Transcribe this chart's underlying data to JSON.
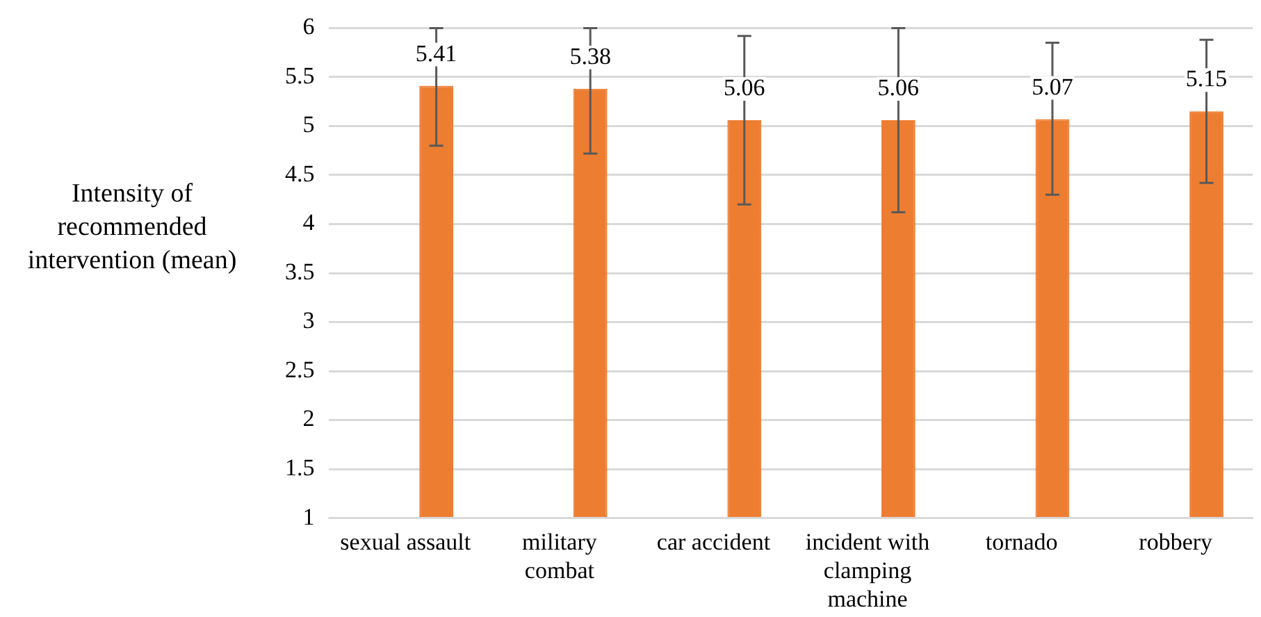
{
  "chart_data": {
    "type": "bar",
    "ylabel": "Intensity of recommended intervention (mean)",
    "categories": [
      "sexual assault",
      "military combat",
      "car accident",
      "incident with clamping machine",
      "tornado",
      "robbery"
    ],
    "series": [
      {
        "color": "#a5b8e0",
        "values": [
          1,
          1,
          1,
          1,
          1,
          1
        ]
      },
      {
        "color": "#ed7d31",
        "values": [
          5.41,
          5.38,
          5.06,
          5.06,
          5.07,
          5.15
        ],
        "value_labels": [
          "5.41",
          "5.38",
          "5.06",
          "5.06",
          "5.07",
          "5.15"
        ],
        "errors": [
          [
            4.8,
            6
          ],
          [
            4.72,
            6
          ],
          [
            4.2,
            5.92
          ],
          [
            4.12,
            6
          ],
          [
            4.3,
            5.85
          ],
          [
            4.42,
            5.88
          ]
        ]
      }
    ],
    "ylim": [
      1,
      6
    ],
    "yticks": [
      1,
      1.5,
      2,
      2.5,
      3,
      3.5,
      4,
      4.5,
      5,
      5.5,
      6
    ],
    "grid": "y",
    "legend": false
  }
}
